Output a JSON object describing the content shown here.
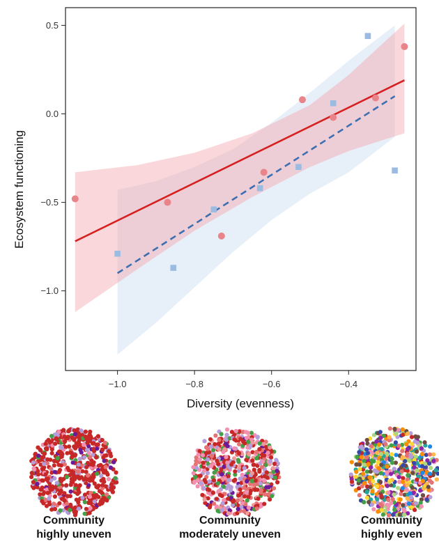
{
  "chart_data": {
    "type": "scatter",
    "xlabel": "Diversity (evenness)",
    "ylabel": "Ecosystem functioning",
    "xlim": [
      -1.135,
      -0.225
    ],
    "ylim": [
      -1.45,
      0.6
    ],
    "xticks": [
      -1.0,
      -0.8,
      -0.6,
      -0.4
    ],
    "xtick_labels": [
      "−1.0",
      "−0.8",
      "−0.6",
      "−0.4"
    ],
    "yticks": [
      0.5,
      0.0,
      -0.5,
      -1.0
    ],
    "ytick_labels": [
      "0.5",
      "0.0",
      "−0.5",
      "−1.0"
    ],
    "grid": false,
    "legend": "none",
    "series": [
      {
        "marker": "circle",
        "color": "#E8848A",
        "points": [
          {
            "x": -1.11,
            "y": -0.48
          },
          {
            "x": -0.87,
            "y": -0.5
          },
          {
            "x": -0.73,
            "y": -0.69
          },
          {
            "x": -0.62,
            "y": -0.33
          },
          {
            "x": -0.52,
            "y": 0.08
          },
          {
            "x": -0.44,
            "y": -0.02
          },
          {
            "x": -0.33,
            "y": 0.09
          },
          {
            "x": -0.255,
            "y": 0.38
          }
        ],
        "fit": {
          "x": [
            -1.11,
            -0.255
          ],
          "y": [
            -0.72,
            0.19
          ],
          "line_color": "#D62020",
          "dash": "solid"
        },
        "ci": {
          "x": [
            -1.11,
            -0.95,
            -0.8,
            -0.65,
            -0.5,
            -0.4,
            -0.3,
            -0.255
          ],
          "lower": [
            -1.12,
            -0.88,
            -0.66,
            -0.47,
            -0.3,
            -0.21,
            -0.14,
            -0.11
          ],
          "upper": [
            -0.33,
            -0.29,
            -0.22,
            -0.11,
            0.05,
            0.22,
            0.42,
            0.51
          ],
          "color": "#F4A6AE"
        }
      },
      {
        "marker": "square",
        "color": "#9BBCE0",
        "points": [
          {
            "x": -1.0,
            "y": -0.79
          },
          {
            "x": -0.855,
            "y": -0.87
          },
          {
            "x": -0.75,
            "y": -0.54
          },
          {
            "x": -0.63,
            "y": -0.42
          },
          {
            "x": -0.53,
            "y": -0.3
          },
          {
            "x": -0.44,
            "y": 0.06
          },
          {
            "x": -0.35,
            "y": 0.44
          },
          {
            "x": -0.28,
            "y": -0.32
          }
        ],
        "fit": {
          "x": [
            -1.0,
            -0.28
          ],
          "y": [
            -0.9,
            0.1
          ],
          "line_color": "#3D6FB0",
          "dash": "dashed"
        },
        "ci": {
          "x": [
            -1.0,
            -0.9,
            -0.8,
            -0.7,
            -0.6,
            -0.5,
            -0.4,
            -0.28
          ],
          "lower": [
            -1.36,
            -1.18,
            -0.98,
            -0.78,
            -0.6,
            -0.45,
            -0.33,
            -0.13
          ],
          "upper": [
            -0.43,
            -0.38,
            -0.3,
            -0.2,
            -0.05,
            0.12,
            0.3,
            0.5
          ],
          "color": "#C9DBEF"
        }
      }
    ]
  },
  "communities": [
    {
      "line1": "Community",
      "line2": "highly uneven",
      "palette": [
        "#C62828",
        "#C62828",
        "#C62828",
        "#C62828",
        "#C62828",
        "#C62828",
        "#C62828",
        "#C62828",
        "#C62828",
        "#C62828",
        "#C62828",
        "#C62828",
        "#B39DDB",
        "#B39DDB",
        "#43A047",
        "#E57373",
        "#F48FB1",
        "#6A1B9A"
      ]
    },
    {
      "line1": "Community",
      "line2": "moderately uneven",
      "palette": [
        "#C62828",
        "#C62828",
        "#C62828",
        "#C62828",
        "#C62828",
        "#B39DDB",
        "#B39DDB",
        "#43A047",
        "#43A047",
        "#F48FB1",
        "#F48FB1",
        "#E57373",
        "#E57373",
        "#6A1B9A",
        "#EF9A9A"
      ]
    },
    {
      "line1": "Community",
      "line2": "highly even",
      "palette": [
        "#C62828",
        "#43A047",
        "#1E88E5",
        "#FDD835",
        "#FB8C00",
        "#8E24AA",
        "#B39DDB",
        "#F48FB1",
        "#26A69A",
        "#6D4C41",
        "#3949AB",
        "#AED581",
        "#E57373",
        "#FFB74D"
      ]
    }
  ]
}
